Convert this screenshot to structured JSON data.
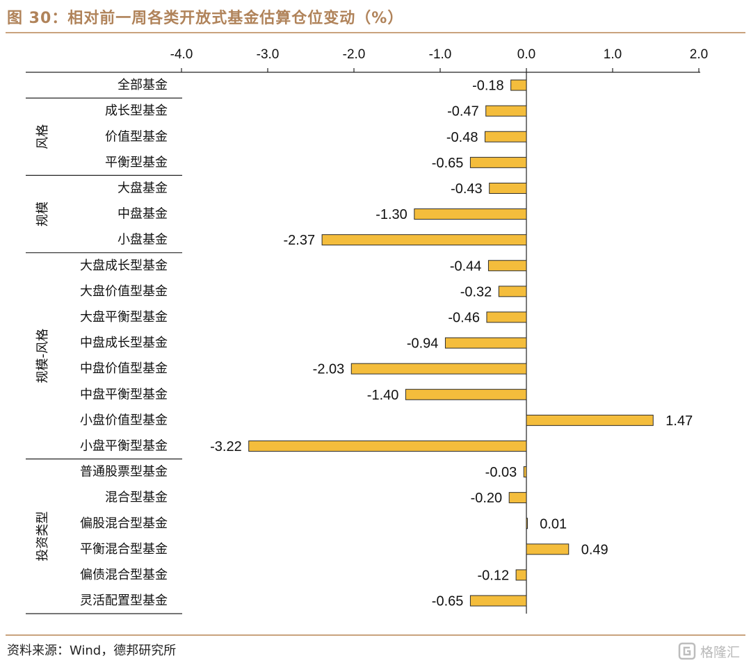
{
  "header": {
    "title": "图 30：相对前一周各类开放式基金估算仓位变动（%）"
  },
  "footer": {
    "source": "资料来源：Wind，德邦研究所",
    "watermark": "格隆汇"
  },
  "colors": {
    "bar": "#f4bd3c",
    "bar_stroke": "#2b2b2b",
    "rule": "#c9a27d",
    "title": "#b0835a"
  },
  "chart_data": {
    "type": "bar",
    "orientation": "horizontal",
    "xlim": [
      -4.0,
      2.0
    ],
    "x_ticks": [
      "-4.0",
      "-3.0",
      "-2.0",
      "-1.0",
      "0.0",
      "1.0",
      "2.0"
    ],
    "categories": [
      "全部基金",
      "成长型基金",
      "价值型基金",
      "平衡型基金",
      "大盘基金",
      "中盘基金",
      "小盘基金",
      "大盘成长型基金",
      "大盘价值型基金",
      "大盘平衡型基金",
      "中盘成长型基金",
      "中盘价值型基金",
      "中盘平衡型基金",
      "小盘价值型基金",
      "小盘平衡型基金",
      "普通股票型基金",
      "混合型基金",
      "偏股混合型基金",
      "平衡混合型基金",
      "偏债混合型基金",
      "灵活配置型基金"
    ],
    "values": [
      -0.18,
      -0.47,
      -0.48,
      -0.65,
      -0.43,
      -1.3,
      -2.37,
      -0.44,
      -0.32,
      -0.46,
      -0.94,
      -2.03,
      -1.4,
      1.47,
      -3.22,
      -0.03,
      -0.2,
      0.01,
      0.49,
      -0.12,
      -0.65
    ],
    "value_labels": [
      "-0.18",
      "-0.47",
      "-0.48",
      "-0.65",
      "-0.43",
      "-1.30",
      "-2.37",
      "-0.44",
      "-0.32",
      "-0.46",
      "-0.94",
      "-2.03",
      "-1.40",
      "1.47",
      "-3.22",
      "-0.03",
      "-0.20",
      "0.01",
      "0.49",
      "-0.12",
      "-0.65"
    ],
    "groups": [
      {
        "label": "",
        "start": 0,
        "end": 0
      },
      {
        "label": "风格",
        "start": 1,
        "end": 3
      },
      {
        "label": "规模",
        "start": 4,
        "end": 6
      },
      {
        "label": "规模-风格",
        "start": 7,
        "end": 14
      },
      {
        "label": "投资类型",
        "start": 15,
        "end": 20
      }
    ],
    "grid": false,
    "legend": "none"
  }
}
